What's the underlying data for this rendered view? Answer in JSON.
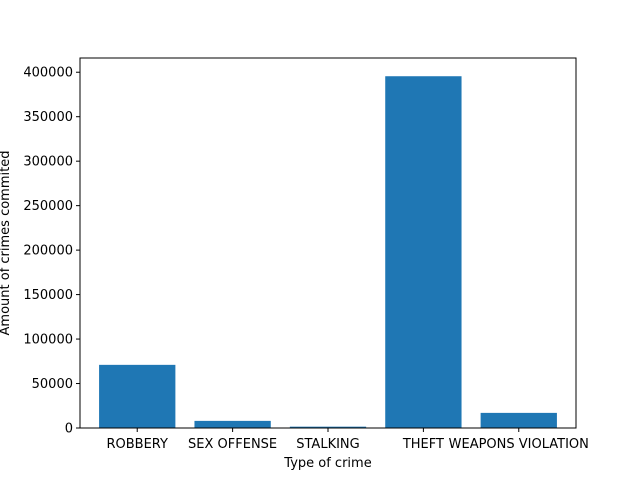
{
  "chart_data": {
    "type": "bar",
    "title": "",
    "xlabel": "Type of crime",
    "ylabel": "Amount of crimes commited",
    "categories": [
      "ROBBERY",
      "SEX OFFENSE",
      "STALKING",
      "THEFT",
      "WEAPONS VIOLATION"
    ],
    "values": [
      71000,
      8000,
      1500,
      395500,
      17000
    ],
    "ylim": [
      0,
      416000
    ],
    "yticks": [
      0,
      50000,
      100000,
      150000,
      200000,
      250000,
      300000,
      350000,
      400000
    ],
    "grid": false,
    "legend": "none",
    "bar_color": "#1f77b4"
  }
}
